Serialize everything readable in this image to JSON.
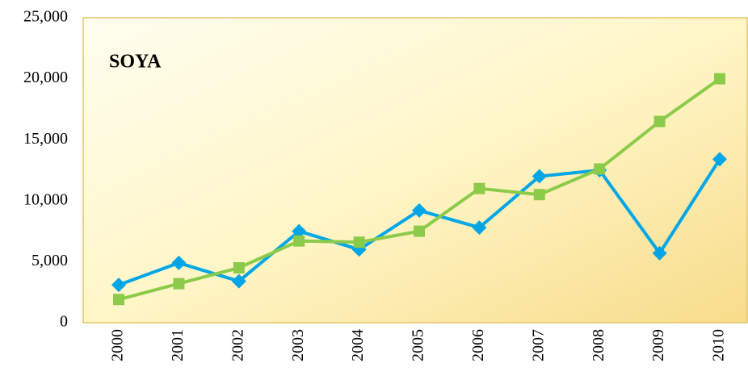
{
  "chart_data": {
    "type": "line",
    "title": "SOYA",
    "categories": [
      "2000",
      "2001",
      "2002",
      "2003",
      "2004",
      "2005",
      "2006",
      "2007",
      "2008",
      "2009",
      "2010"
    ],
    "series": [
      {
        "color": "#00a6e6",
        "marker": "diamond",
        "values": [
          3100,
          4900,
          3400,
          7500,
          6000,
          9200,
          7800,
          12000,
          12500,
          5700,
          13400
        ]
      },
      {
        "color": "#8ccb4a",
        "marker": "square",
        "values": [
          1900,
          3200,
          4500,
          6700,
          6600,
          7500,
          11000,
          10500,
          12600,
          16500,
          20000
        ]
      }
    ],
    "ylim": [
      0,
      25000
    ],
    "yticks": [
      0,
      {
        "value": 5000,
        "label": "5,000"
      },
      {
        "value": 10000,
        "label": "10,000"
      },
      {
        "value": 15000,
        "label": "15,000"
      },
      {
        "value": 20000,
        "label": "20,000"
      },
      {
        "value": 25000,
        "label": "25,000"
      }
    ],
    "grid": false
  }
}
